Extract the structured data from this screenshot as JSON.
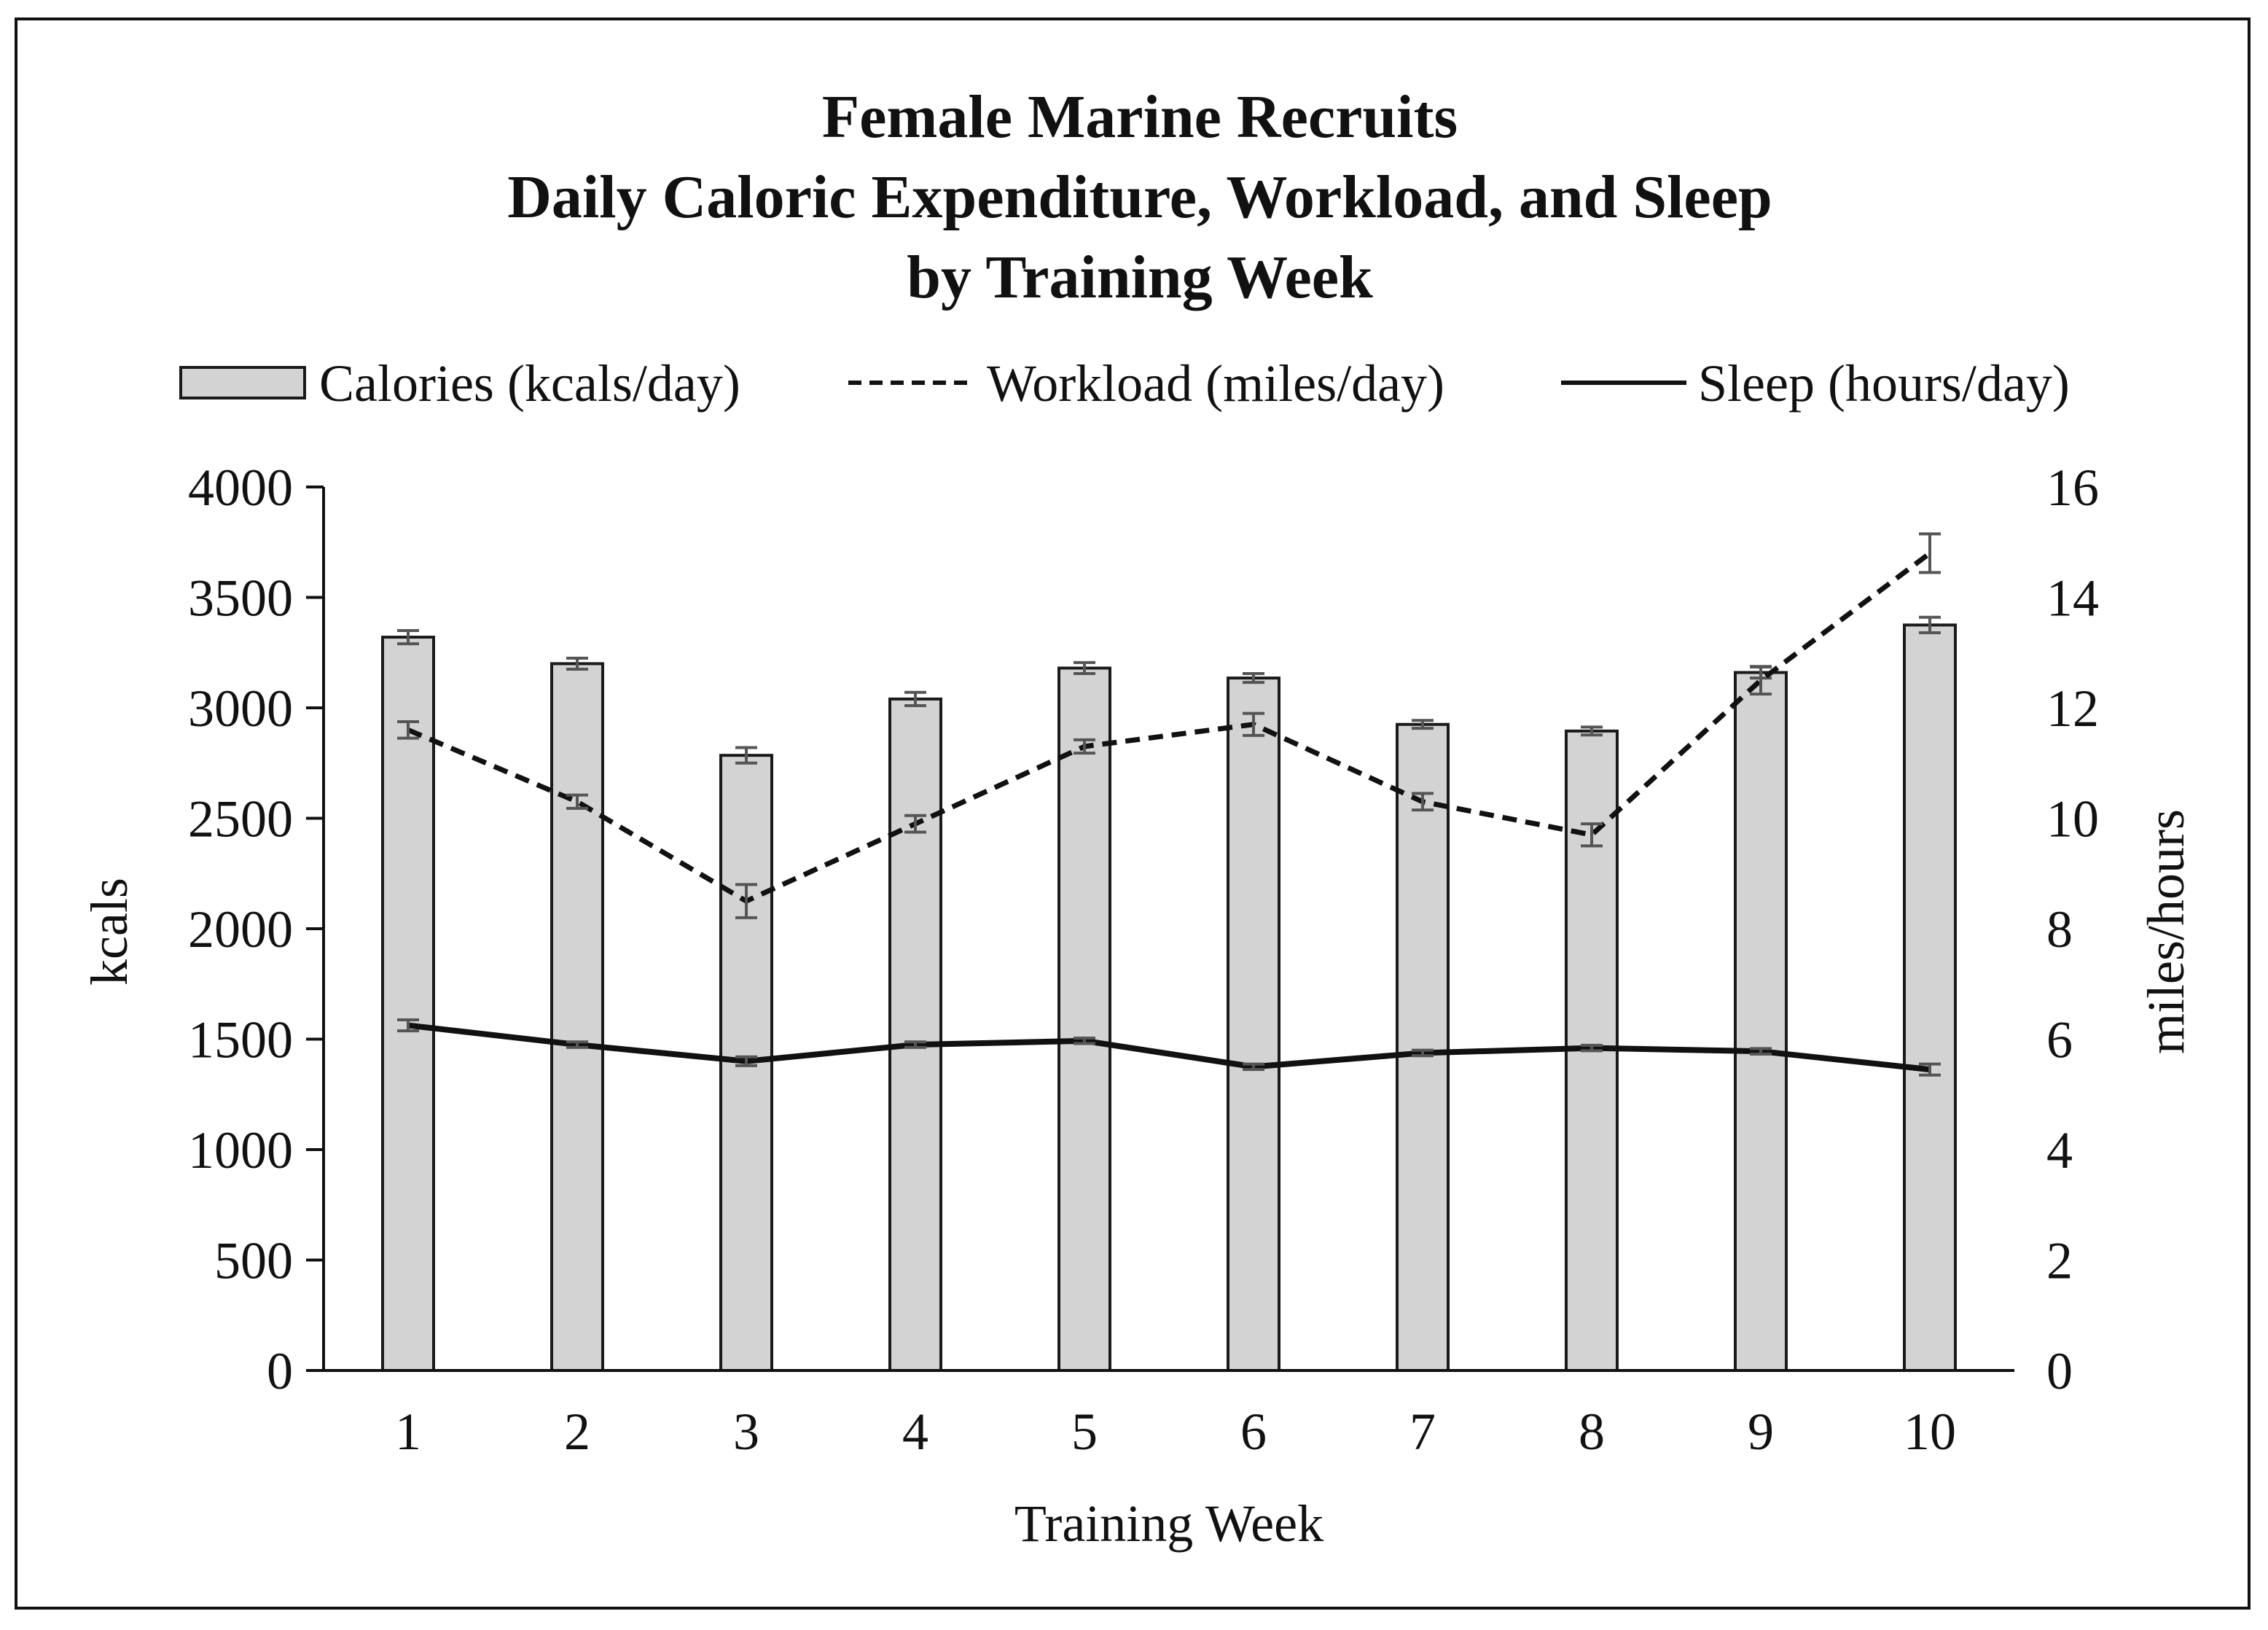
{
  "chart_data": {
    "type": "bar",
    "title_lines": [
      "Female Marine Recruits",
      "Daily Caloric Expenditure, Workload, and Sleep",
      "by Training Week"
    ],
    "xlabel": "Training Week",
    "ylabel": "kcals",
    "y2label": "miles/hours",
    "categories": [
      "1",
      "2",
      "3",
      "4",
      "5",
      "6",
      "7",
      "8",
      "9",
      "10"
    ],
    "ylim": [
      0,
      4000
    ],
    "yticks": [
      "0",
      "500",
      "1000",
      "1500",
      "2000",
      "2500",
      "3000",
      "3500",
      "4000"
    ],
    "y2lim": [
      0,
      16
    ],
    "y2ticks": [
      "0",
      "2",
      "4",
      "6",
      "8",
      "10",
      "12",
      "14",
      "16"
    ],
    "legend_position": "top",
    "series": [
      {
        "name": "Calories (kcals/day)",
        "kind": "bar",
        "axis": "left",
        "values": [
          3320,
          3200,
          2785,
          3040,
          3180,
          3135,
          2925,
          2895,
          3160,
          3375
        ],
        "errors": [
          30,
          25,
          35,
          30,
          25,
          20,
          18,
          18,
          25,
          35
        ]
      },
      {
        "name": "Workload (miles/day)",
        "kind": "line",
        "style": "dashed",
        "axis": "right",
        "values": [
          11.6,
          10.3,
          8.5,
          9.9,
          11.3,
          11.7,
          10.3,
          9.7,
          12.5,
          14.8
        ],
        "errors": [
          0.15,
          0.12,
          0.3,
          0.15,
          0.12,
          0.2,
          0.15,
          0.2,
          0.25,
          0.35
        ]
      },
      {
        "name": "Sleep (hours/day)",
        "kind": "line",
        "style": "solid",
        "axis": "right",
        "values": [
          6.25,
          5.9,
          5.6,
          5.9,
          5.97,
          5.5,
          5.75,
          5.84,
          5.78,
          5.45
        ],
        "errors": [
          0.1,
          0.05,
          0.08,
          0.05,
          0.05,
          0.05,
          0.05,
          0.05,
          0.05,
          0.1
        ]
      }
    ],
    "colors": {
      "bar_fill": "#d3d3d3",
      "bar_stroke": "#1a1a1a",
      "line": "#111111",
      "error_bar": "#555555",
      "axis": "#111111"
    }
  }
}
